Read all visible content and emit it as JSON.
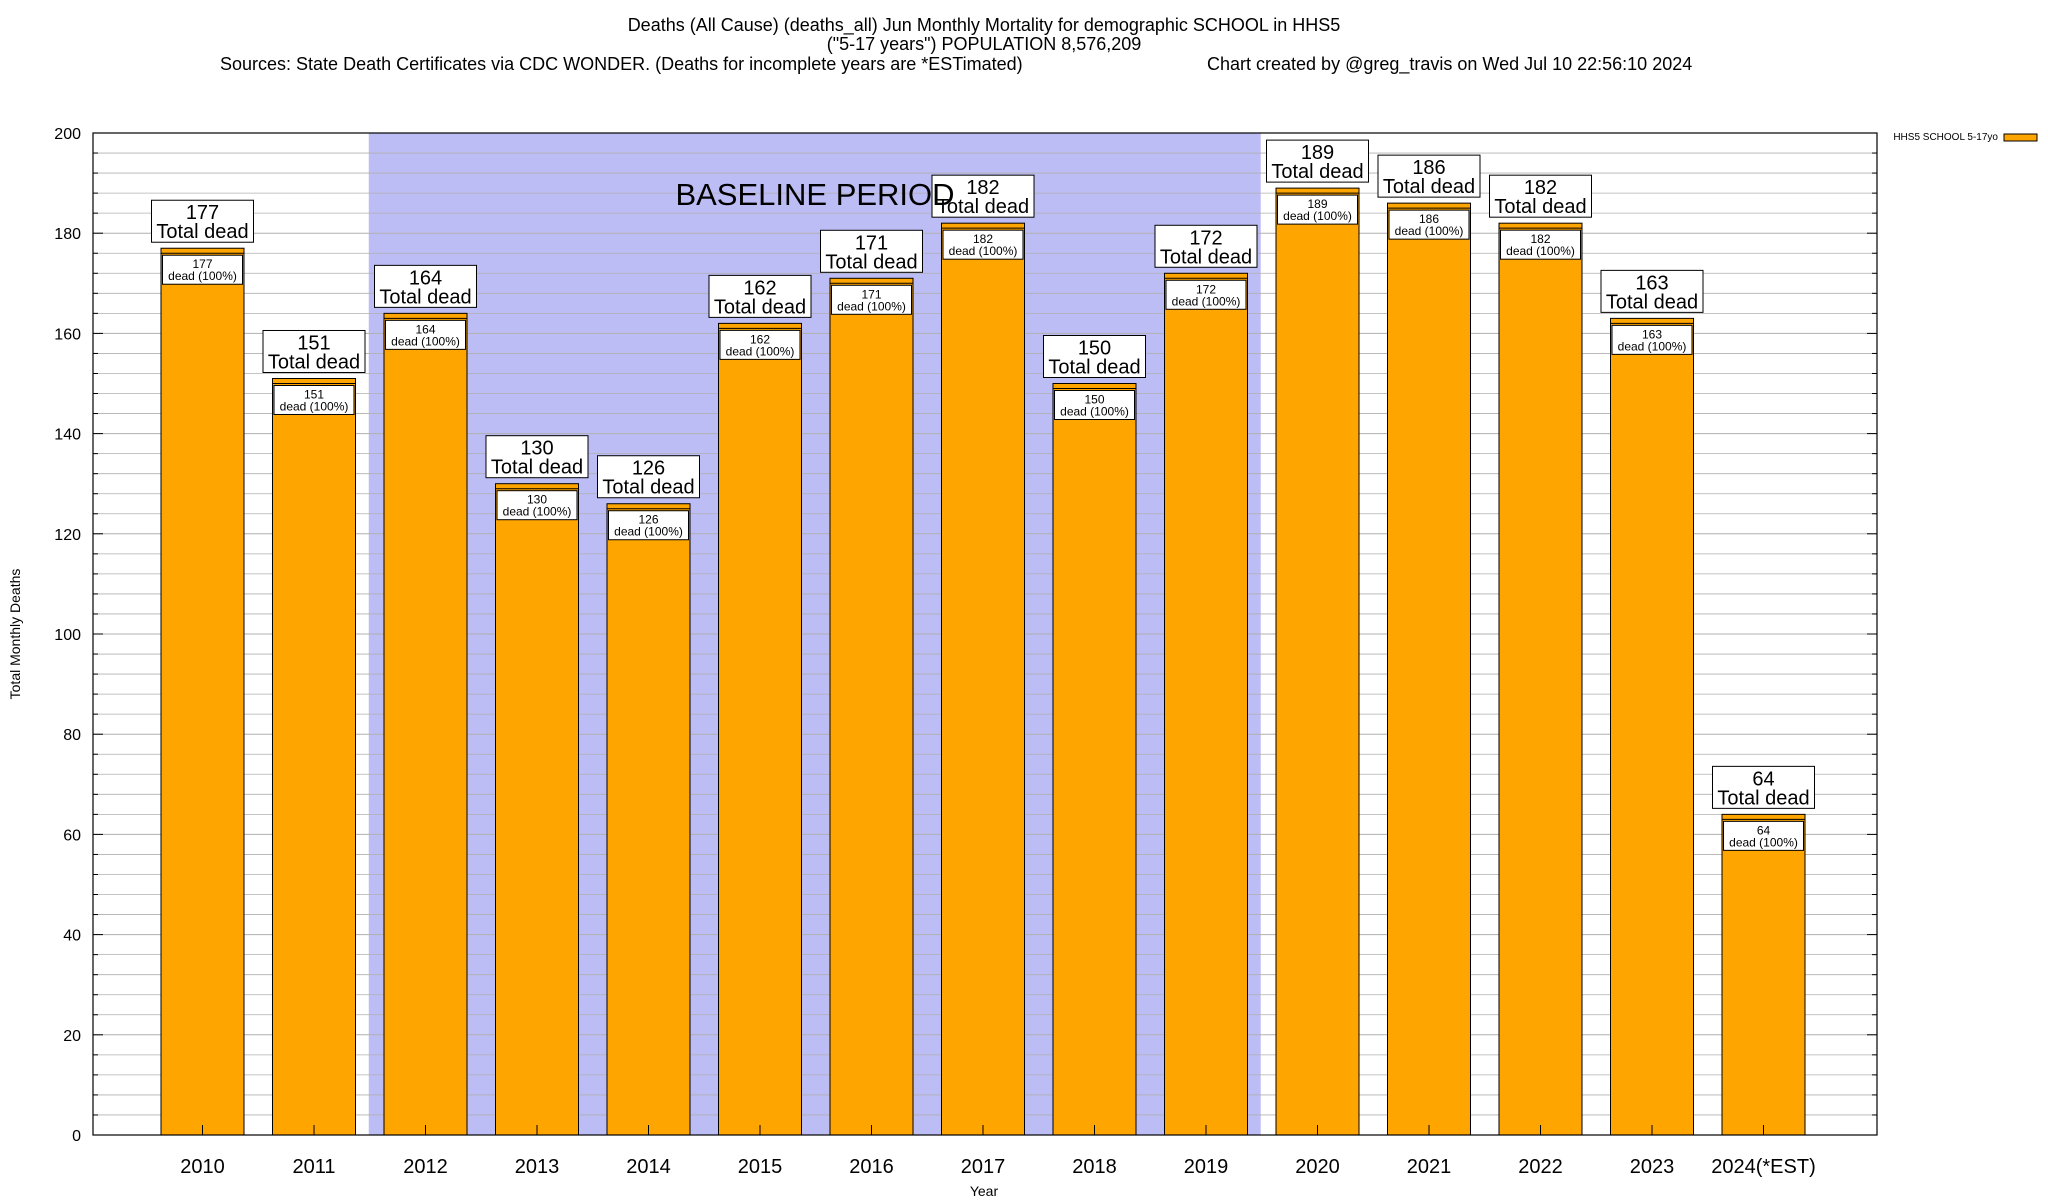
{
  "chart_data": {
    "type": "bar",
    "title_line1": "Deaths (All Cause) (deaths_all) Jun Monthly Mortality for demographic SCHOOL in HHS5",
    "title_line2": "(\"5-17 years\") POPULATION 8,576,209",
    "sources": "Sources: State Death Certificates via CDC WONDER. (Deaths for incomplete years are *ESTimated)",
    "credit": "Chart created by @greg_travis on Wed Jul 10 22:56:10 2024",
    "xlabel": "Year",
    "ylabel": "Total Monthly Deaths",
    "ylim": [
      0,
      200
    ],
    "y_major_step": 20,
    "y_minor_step": 4,
    "categories": [
      "2010",
      "2011",
      "2012",
      "2013",
      "2014",
      "2015",
      "2016",
      "2017",
      "2018",
      "2019",
      "2020",
      "2021",
      "2022",
      "2023",
      "2024(*EST)"
    ],
    "values": [
      177,
      151,
      164,
      130,
      126,
      162,
      171,
      182,
      150,
      172,
      189,
      186,
      182,
      163,
      64
    ],
    "bar_top_label": "Total dead",
    "bar_inner_label": "dead (100%)",
    "baseline_label": "BASELINE PERIOD",
    "baseline_range": [
      "2012",
      "2019"
    ],
    "legend": {
      "label": "HHS5 SCHOOL 5-17yo",
      "position": "top-right"
    },
    "colors": {
      "bar": "#FFA500",
      "baseline": "#BDBDF5",
      "grid": "#B0B0B0"
    }
  }
}
